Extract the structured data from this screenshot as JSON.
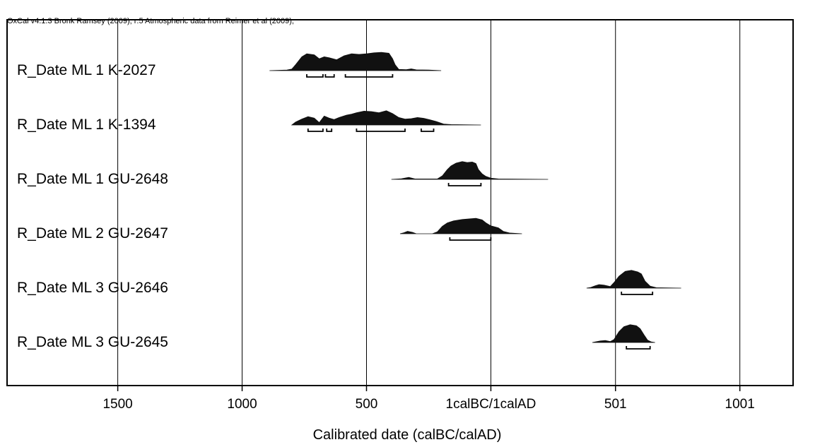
{
  "header": {
    "text": "OxCal v4.1.3 Bronk Ramsey (2009); r:5 Atmospheric data from Reimer et al (2009);"
  },
  "chart_data": {
    "type": "area",
    "title": "",
    "xlabel": "Calibrated date (calBC/calAD)",
    "xlim": [
      -1945,
      1215
    ],
    "x_axis_signed_convention": "negative = calBC, positive = calAD",
    "ticks": [
      {
        "value": -1500,
        "label": "1500"
      },
      {
        "value": -1000,
        "label": "1000"
      },
      {
        "value": -500,
        "label": "500"
      },
      {
        "value": 0,
        "label": "1calBC/1calAD"
      },
      {
        "value": 501,
        "label": "501"
      },
      {
        "value": 1001,
        "label": "1001"
      }
    ],
    "gridlines": true,
    "series": [
      {
        "name": "R_Date ML 1 K-2027",
        "density": [
          [
            -890,
            0
          ],
          [
            -820,
            0.03
          ],
          [
            -800,
            0.08
          ],
          [
            -785,
            0.3
          ],
          [
            -760,
            0.7
          ],
          [
            -740,
            0.85
          ],
          [
            -710,
            0.8
          ],
          [
            -690,
            0.6
          ],
          [
            -670,
            0.7
          ],
          [
            -650,
            0.65
          ],
          [
            -620,
            0.55
          ],
          [
            -590,
            0.75
          ],
          [
            -560,
            0.85
          ],
          [
            -530,
            0.82
          ],
          [
            -500,
            0.85
          ],
          [
            -470,
            0.9
          ],
          [
            -440,
            0.92
          ],
          [
            -410,
            0.88
          ],
          [
            -395,
            0.6
          ],
          [
            -385,
            0.3
          ],
          [
            -370,
            0.06
          ],
          [
            -340,
            0.05
          ],
          [
            -320,
            0.09
          ],
          [
            -300,
            0.04
          ],
          [
            -250,
            0.03
          ],
          [
            -200,
            0
          ]
        ],
        "ranges": [
          [
            -740,
            -675
          ],
          [
            -665,
            -630
          ],
          [
            -585,
            -395
          ]
        ]
      },
      {
        "name": "R_Date ML 1 K-1394",
        "density": [
          [
            -800,
            0
          ],
          [
            -785,
            0.15
          ],
          [
            -760,
            0.3
          ],
          [
            -735,
            0.42
          ],
          [
            -710,
            0.35
          ],
          [
            -690,
            0.12
          ],
          [
            -670,
            0.45
          ],
          [
            -650,
            0.35
          ],
          [
            -630,
            0.28
          ],
          [
            -610,
            0.38
          ],
          [
            -580,
            0.5
          ],
          [
            -560,
            0.55
          ],
          [
            -540,
            0.62
          ],
          [
            -510,
            0.7
          ],
          [
            -480,
            0.68
          ],
          [
            -450,
            0.62
          ],
          [
            -420,
            0.72
          ],
          [
            -395,
            0.58
          ],
          [
            -370,
            0.38
          ],
          [
            -345,
            0.3
          ],
          [
            -320,
            0.32
          ],
          [
            -295,
            0.38
          ],
          [
            -270,
            0.34
          ],
          [
            -245,
            0.26
          ],
          [
            -220,
            0.18
          ],
          [
            -190,
            0.05
          ],
          [
            -160,
            0.02
          ],
          [
            -40,
            0
          ]
        ],
        "ranges": [
          [
            -735,
            -675
          ],
          [
            -660,
            -640
          ],
          [
            -540,
            -345
          ],
          [
            -280,
            -230
          ]
        ]
      },
      {
        "name": "R_Date ML 1 GU-2648",
        "density": [
          [
            -400,
            0
          ],
          [
            -360,
            0.03
          ],
          [
            -330,
            0.1
          ],
          [
            -305,
            0.02
          ],
          [
            -280,
            0.02
          ],
          [
            -215,
            0.02
          ],
          [
            -195,
            0.18
          ],
          [
            -175,
            0.5
          ],
          [
            -160,
            0.68
          ],
          [
            -140,
            0.82
          ],
          [
            -115,
            0.9
          ],
          [
            -95,
            0.85
          ],
          [
            -75,
            0.88
          ],
          [
            -60,
            0.8
          ],
          [
            -50,
            0.5
          ],
          [
            -35,
            0.28
          ],
          [
            -20,
            0.15
          ],
          [
            0,
            0.06
          ],
          [
            30,
            0.02
          ],
          [
            230,
            0
          ]
        ],
        "ranges": [
          [
            -170,
            -40
          ]
        ]
      },
      {
        "name": "R_Date ML 2 GU-2647",
        "density": [
          [
            -365,
            0
          ],
          [
            -350,
            0.05
          ],
          [
            -335,
            0.12
          ],
          [
            -315,
            0.07
          ],
          [
            -300,
            0
          ],
          [
            -235,
            0
          ],
          [
            -215,
            0.1
          ],
          [
            -195,
            0.38
          ],
          [
            -175,
            0.55
          ],
          [
            -150,
            0.65
          ],
          [
            -115,
            0.72
          ],
          [
            -90,
            0.75
          ],
          [
            -60,
            0.78
          ],
          [
            -35,
            0.7
          ],
          [
            -20,
            0.55
          ],
          [
            0,
            0.4
          ],
          [
            30,
            0.3
          ],
          [
            50,
            0.12
          ],
          [
            75,
            0.04
          ],
          [
            125,
            0
          ]
        ],
        "ranges": [
          [
            -165,
            0
          ]
        ]
      },
      {
        "name": "R_Date ML 3 GU-2646",
        "density": [
          [
            385,
            0
          ],
          [
            400,
            0.03
          ],
          [
            420,
            0.12
          ],
          [
            435,
            0.18
          ],
          [
            455,
            0.15
          ],
          [
            480,
            0.08
          ],
          [
            495,
            0.28
          ],
          [
            515,
            0.6
          ],
          [
            540,
            0.85
          ],
          [
            565,
            0.9
          ],
          [
            590,
            0.82
          ],
          [
            605,
            0.72
          ],
          [
            620,
            0.35
          ],
          [
            640,
            0.1
          ],
          [
            665,
            0.02
          ],
          [
            765,
            0
          ]
        ],
        "ranges": [
          [
            525,
            650
          ]
        ]
      },
      {
        "name": "R_Date ML 3 GU-2645",
        "density": [
          [
            408,
            0
          ],
          [
            420,
            0.03
          ],
          [
            440,
            0.08
          ],
          [
            460,
            0.1
          ],
          [
            480,
            0.05
          ],
          [
            495,
            0.15
          ],
          [
            515,
            0.55
          ],
          [
            535,
            0.8
          ],
          [
            560,
            0.9
          ],
          [
            585,
            0.85
          ],
          [
            600,
            0.7
          ],
          [
            615,
            0.4
          ],
          [
            630,
            0.12
          ],
          [
            645,
            0.03
          ],
          [
            660,
            0
          ]
        ],
        "ranges": [
          [
            545,
            640
          ]
        ]
      }
    ]
  }
}
